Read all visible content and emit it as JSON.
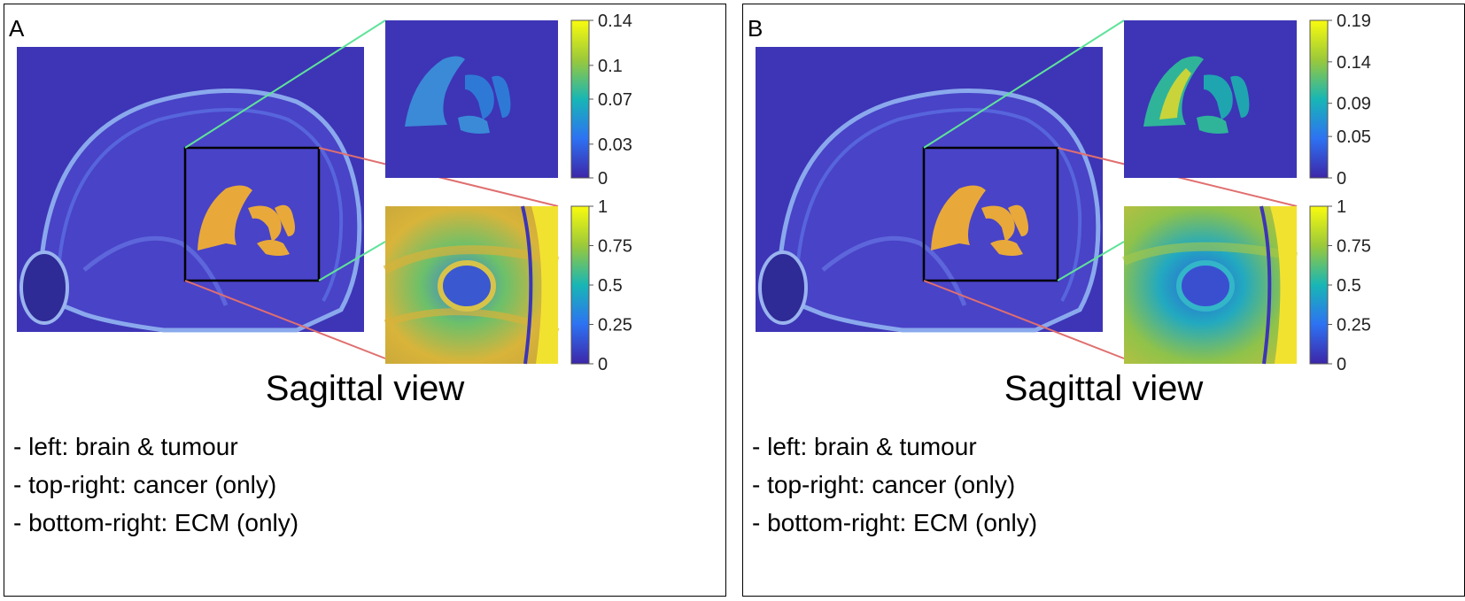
{
  "panels": [
    {
      "id": "A",
      "label": "A",
      "cancer_colorbar": {
        "min": 0,
        "max": 0.14,
        "ticks": [
          "0.14",
          "0.1",
          "0.07",
          "0.03",
          "0"
        ],
        "tick_values": [
          0.14,
          0.1,
          0.07,
          0.03,
          0
        ]
      },
      "ecm_colorbar": {
        "min": 0,
        "max": 1,
        "ticks": [
          "1",
          "0.75",
          "0.5",
          "0.25",
          "0"
        ],
        "tick_values": [
          1,
          0.75,
          0.5,
          0.25,
          0
        ]
      },
      "view_title": "Sagittal view",
      "legend": [
        "- left: brain & tumour",
        "- top-right: cancer (only)",
        "- bottom-right: ECM (only)"
      ]
    },
    {
      "id": "B",
      "label": "B",
      "cancer_colorbar": {
        "min": 0,
        "max": 0.19,
        "ticks": [
          "0.19",
          "0.14",
          "0.09",
          "0.05",
          "0"
        ],
        "tick_values": [
          0.19,
          0.14,
          0.09,
          0.05,
          0
        ]
      },
      "ecm_colorbar": {
        "min": 0,
        "max": 1,
        "ticks": [
          "1",
          "0.75",
          "0.5",
          "0.25",
          "0"
        ],
        "tick_values": [
          1,
          0.75,
          0.5,
          0.25,
          0
        ]
      },
      "view_title": "Sagittal view",
      "legend": [
        "- left: brain & tumour",
        "- top-right: cancer (only)",
        "- bottom-right: ECM (only)"
      ]
    }
  ],
  "colors": {
    "background_blue": "#3d35b6",
    "tumour_orange": "#e8a93a",
    "colormap_low": "#3d26a8",
    "colormap_mid": "#18b6b5",
    "colormap_high": "#f9fb0e",
    "zoom_line_upper": "#5fe39a",
    "zoom_line_lower": "#e06f6f",
    "roi_box": "#000000"
  }
}
